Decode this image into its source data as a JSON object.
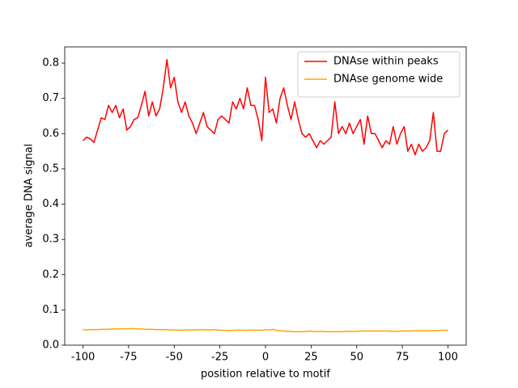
{
  "chart_data": {
    "type": "line",
    "xlabel": "position relative to motif",
    "ylabel": "average DNA signal",
    "x": [
      -100,
      -98,
      -96,
      -94,
      -92,
      -90,
      -88,
      -86,
      -84,
      -82,
      -80,
      -78,
      -76,
      -74,
      -72,
      -70,
      -68,
      -66,
      -64,
      -62,
      -60,
      -58,
      -56,
      -54,
      -52,
      -50,
      -48,
      -46,
      -44,
      -42,
      -40,
      -38,
      -36,
      -34,
      -32,
      -30,
      -28,
      -26,
      -24,
      -22,
      -20,
      -18,
      -16,
      -14,
      -12,
      -10,
      -8,
      -6,
      -4,
      -2,
      0,
      2,
      4,
      6,
      8,
      10,
      12,
      14,
      16,
      18,
      20,
      22,
      24,
      26,
      28,
      30,
      32,
      34,
      36,
      38,
      40,
      42,
      44,
      46,
      48,
      50,
      52,
      54,
      56,
      58,
      60,
      62,
      64,
      66,
      68,
      70,
      72,
      74,
      76,
      78,
      80,
      82,
      84,
      86,
      88,
      90,
      92,
      94,
      96,
      98,
      100
    ],
    "series": [
      {
        "name": "DNAse within peaks",
        "color": "#ff0000",
        "values": [
          0.58,
          0.59,
          0.585,
          0.575,
          0.61,
          0.645,
          0.64,
          0.68,
          0.66,
          0.68,
          0.645,
          0.67,
          0.61,
          0.62,
          0.64,
          0.645,
          0.68,
          0.72,
          0.65,
          0.69,
          0.65,
          0.67,
          0.73,
          0.81,
          0.73,
          0.76,
          0.69,
          0.66,
          0.69,
          0.65,
          0.63,
          0.6,
          0.63,
          0.66,
          0.62,
          0.61,
          0.6,
          0.64,
          0.65,
          0.64,
          0.63,
          0.69,
          0.67,
          0.7,
          0.67,
          0.73,
          0.68,
          0.68,
          0.64,
          0.58,
          0.76,
          0.66,
          0.67,
          0.63,
          0.7,
          0.73,
          0.68,
          0.64,
          0.69,
          0.64,
          0.6,
          0.59,
          0.6,
          0.58,
          0.56,
          0.58,
          0.57,
          0.58,
          0.59,
          0.69,
          0.6,
          0.62,
          0.6,
          0.63,
          0.6,
          0.62,
          0.64,
          0.57,
          0.65,
          0.6,
          0.6,
          0.58,
          0.56,
          0.58,
          0.57,
          0.62,
          0.57,
          0.6,
          0.62,
          0.55,
          0.57,
          0.54,
          0.57,
          0.55,
          0.56,
          0.58,
          0.66,
          0.55,
          0.55,
          0.6,
          0.61
        ]
      },
      {
        "name": "DNAse genome wide",
        "color": "#ffa500",
        "values": [
          0.044,
          0.043,
          0.044,
          0.044,
          0.044,
          0.045,
          0.045,
          0.045,
          0.046,
          0.046,
          0.046,
          0.047,
          0.046,
          0.047,
          0.047,
          0.046,
          0.046,
          0.045,
          0.045,
          0.045,
          0.044,
          0.044,
          0.044,
          0.044,
          0.043,
          0.043,
          0.043,
          0.042,
          0.043,
          0.043,
          0.043,
          0.043,
          0.044,
          0.044,
          0.043,
          0.043,
          0.044,
          0.043,
          0.042,
          0.042,
          0.041,
          0.042,
          0.042,
          0.043,
          0.042,
          0.042,
          0.043,
          0.042,
          0.043,
          0.042,
          0.044,
          0.043,
          0.045,
          0.042,
          0.041,
          0.04,
          0.039,
          0.039,
          0.038,
          0.038,
          0.038,
          0.039,
          0.04,
          0.039,
          0.038,
          0.039,
          0.039,
          0.038,
          0.038,
          0.038,
          0.038,
          0.038,
          0.039,
          0.039,
          0.039,
          0.039,
          0.04,
          0.04,
          0.04,
          0.04,
          0.04,
          0.04,
          0.04,
          0.04,
          0.04,
          0.039,
          0.039,
          0.04,
          0.04,
          0.04,
          0.04,
          0.041,
          0.041,
          0.041,
          0.041,
          0.041,
          0.041,
          0.041,
          0.042,
          0.042,
          0.042
        ]
      }
    ],
    "xlim": [
      -110,
      110
    ],
    "xticks": [
      -100,
      -75,
      -50,
      -25,
      0,
      25,
      50,
      75,
      100
    ],
    "ylim": [
      0,
      0.846
    ],
    "yticks": [
      {
        "value": 0,
        "label": "0.0"
      },
      0.1,
      0.2,
      0.3,
      0.4,
      0.5,
      0.6,
      0.7,
      0.8
    ],
    "grid": false,
    "legend": "upper right"
  }
}
